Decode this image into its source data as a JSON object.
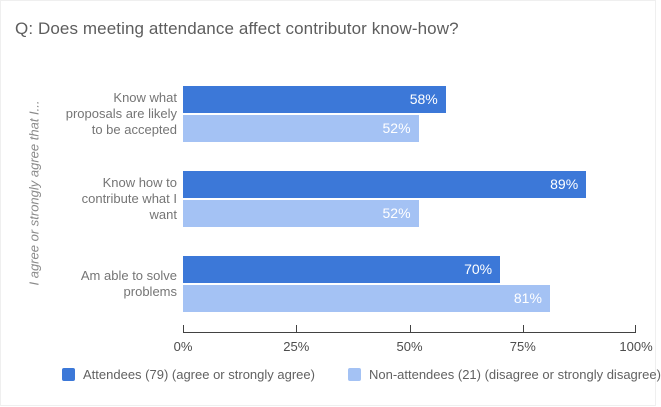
{
  "chart_data": {
    "type": "bar",
    "orientation": "horizontal",
    "title": "Q: Does meeting attendance affect contributor know-how?",
    "y_axis_title": "I agree or strongly agree that I...",
    "categories": [
      "Know what proposals are likely to be accepted",
      "Know how to contribute what I want",
      "Am able to solve problems"
    ],
    "series": [
      {
        "name": "Attendees (79) (agree or strongly agree)",
        "color": "#3c78d8",
        "values": [
          58,
          89,
          70
        ]
      },
      {
        "name": "Non-attendees (21) (disagree or strongly disagree)",
        "color": "#a4c2f4",
        "values": [
          52,
          52,
          81
        ]
      }
    ],
    "value_suffix": "%",
    "x_ticks": [
      "0%",
      "25%",
      "50%",
      "75%",
      "100%"
    ],
    "xlim": [
      0,
      100
    ],
    "grid": false,
    "legend_position": "bottom"
  },
  "colors": {
    "title_text": "#5d5d5d",
    "category_text": "#757575",
    "axis": "#424242",
    "value_text": "#ffffff"
  }
}
